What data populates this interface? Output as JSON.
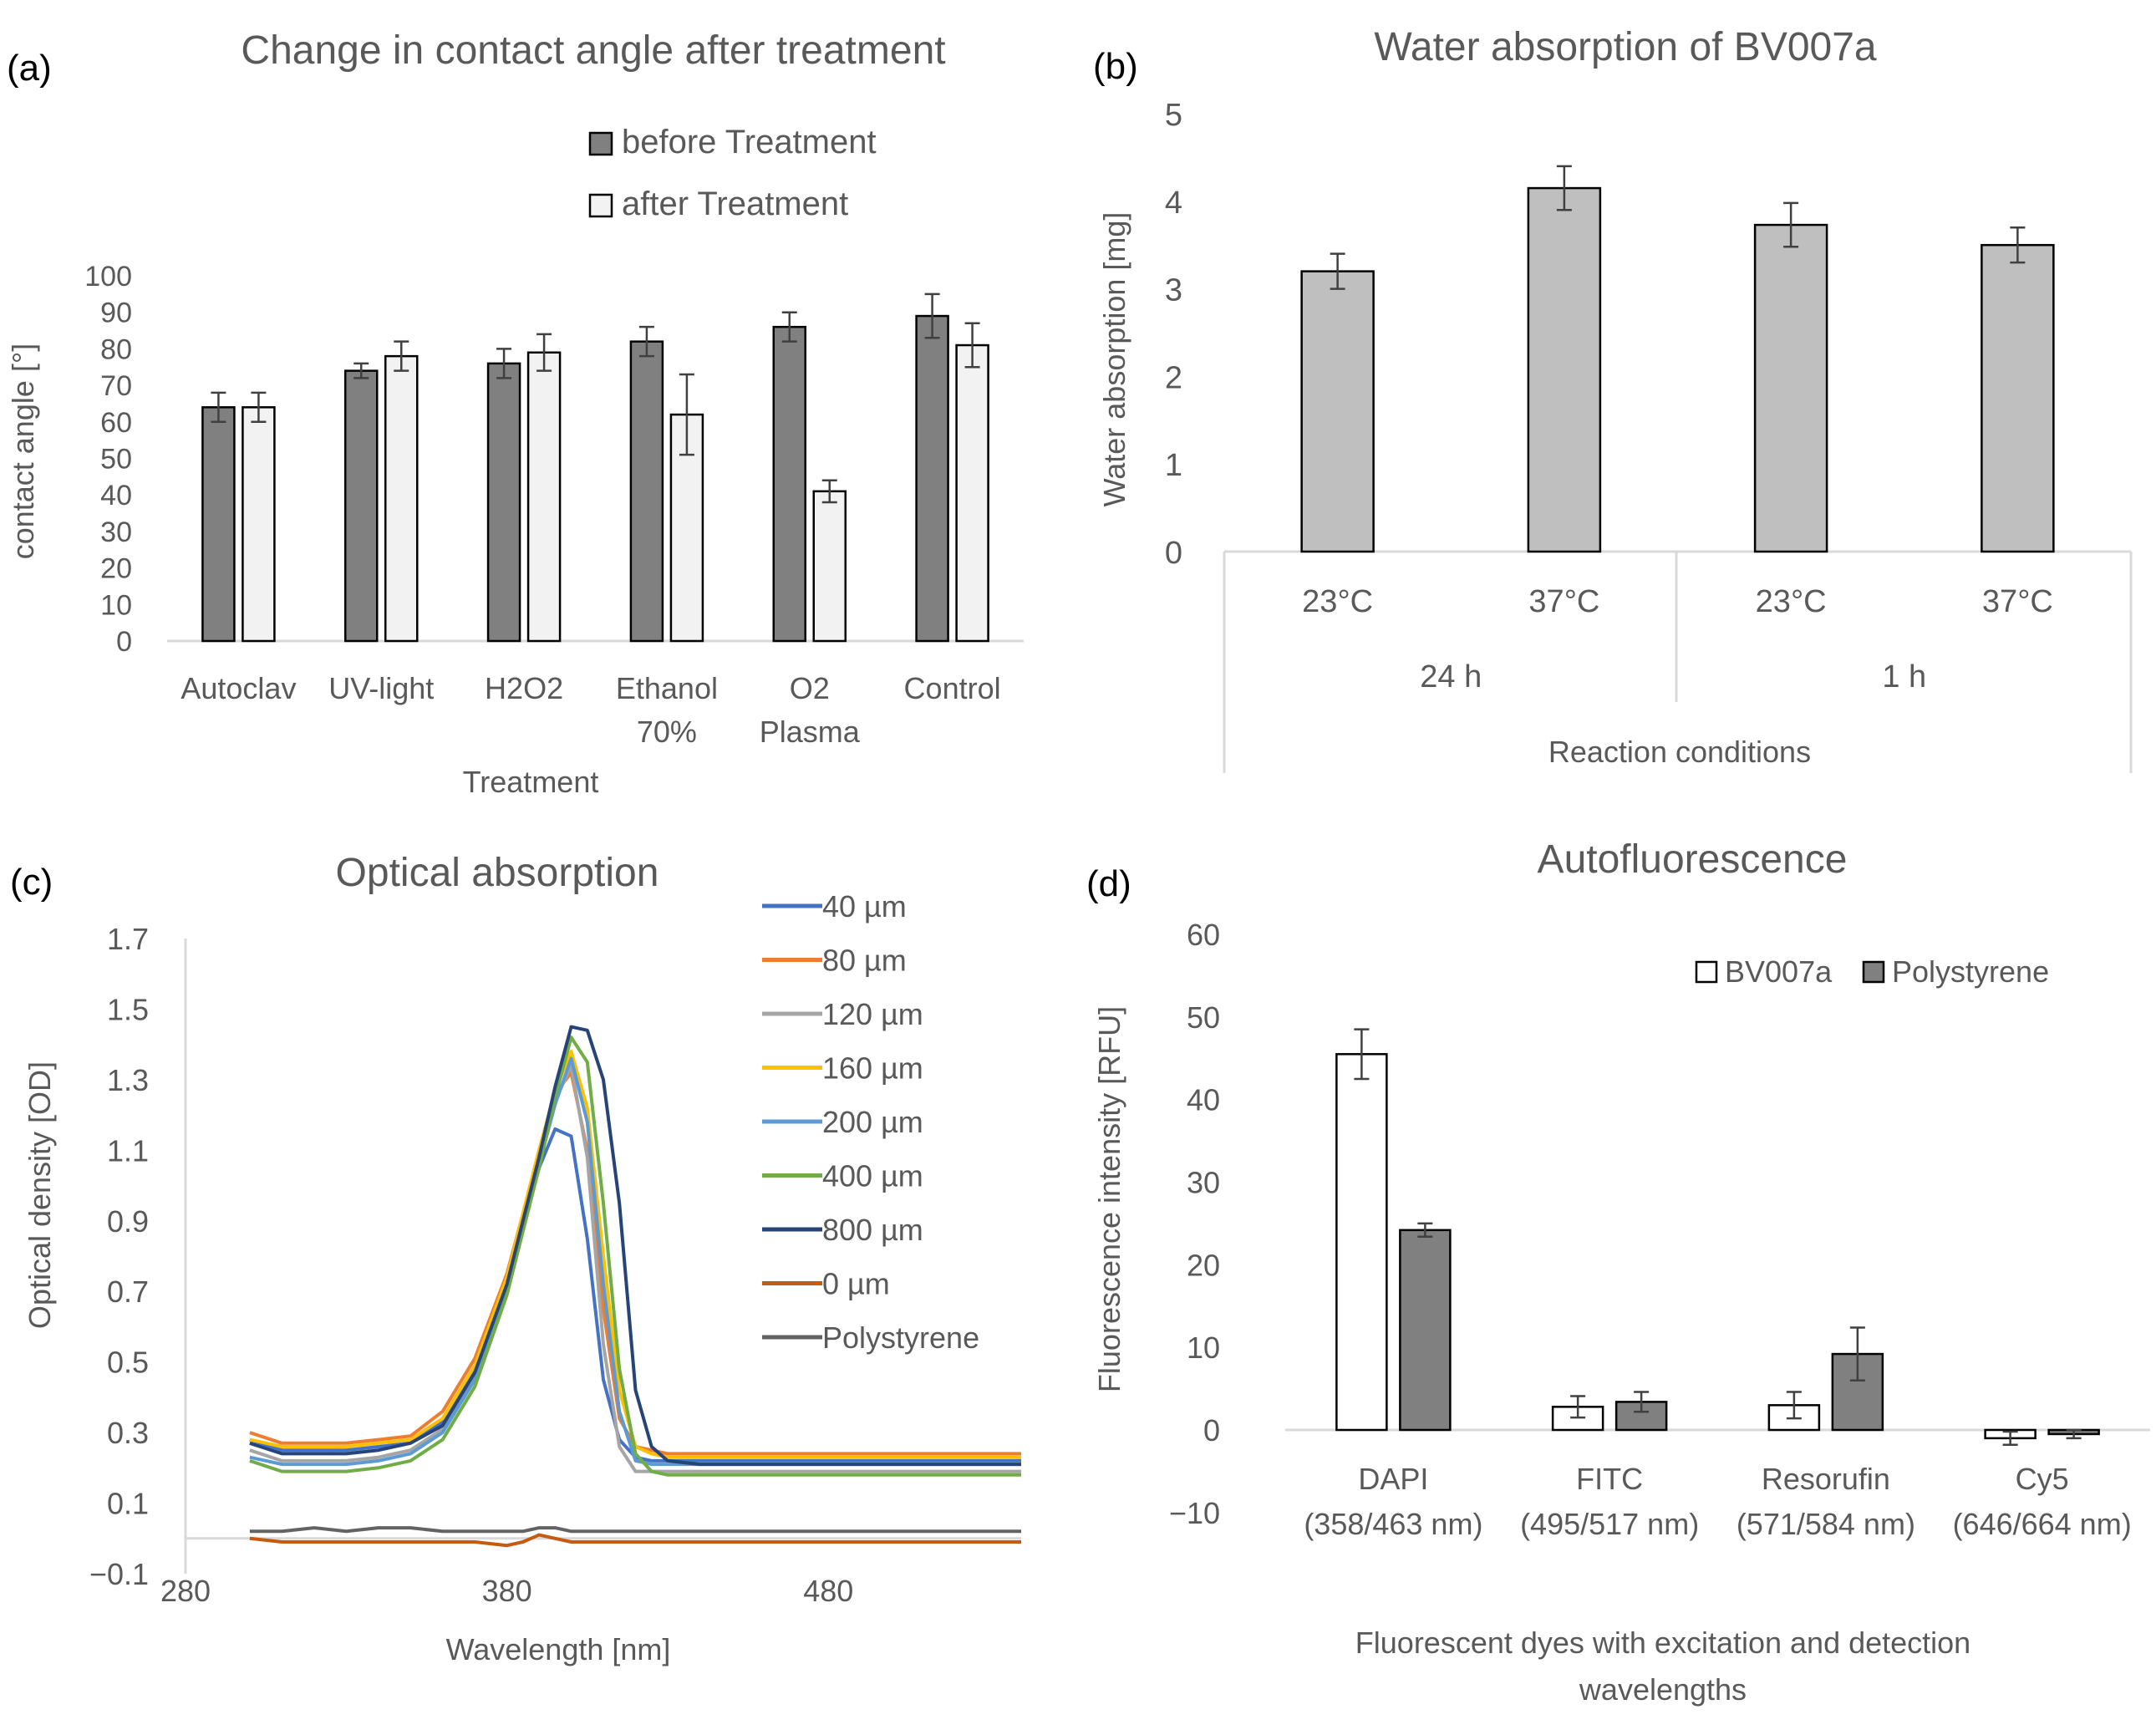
{
  "chart_data": [
    {
      "panel_label": "(a)",
      "type": "bar",
      "title": "Change in contact angle after treatment",
      "xlabel": "Treatment",
      "ylabel": "contact angle [°]",
      "ylim": [
        0,
        100
      ],
      "yticks": [
        "0",
        "10",
        "20",
        "30",
        "40",
        "50",
        "60",
        "70",
        "80",
        "90",
        "100"
      ],
      "categories": [
        "Autoclav",
        "UV-light",
        "H2O2",
        "Ethanol 70%",
        "O2 Plasma",
        "Control"
      ],
      "category_lines": [
        [
          "Autoclav"
        ],
        [
          "UV-light"
        ],
        [
          "H2O2"
        ],
        [
          "Ethanol",
          "70%"
        ],
        [
          "O2",
          "Plasma"
        ],
        [
          "Control"
        ]
      ],
      "series": [
        {
          "name": "before Treatment",
          "color": "#808080",
          "values": [
            64,
            74,
            76,
            82,
            86,
            89
          ],
          "errors": [
            4,
            2,
            4,
            4,
            4,
            6
          ]
        },
        {
          "name": "after Treatment",
          "color": "#f2f2f2",
          "values": [
            64,
            78,
            79,
            62,
            41,
            81
          ],
          "errors": [
            4,
            4,
            5,
            11,
            3,
            6
          ]
        }
      ],
      "legend_position": "top-right"
    },
    {
      "panel_label": "(b)",
      "type": "bar",
      "title": "Water absorption of BV007a",
      "xlabel": "Reaction conditions",
      "ylabel": "Water absorption [mg]",
      "ylim": [
        0,
        5
      ],
      "yticks": [
        "0",
        "1",
        "2",
        "3",
        "4",
        "5"
      ],
      "categories": [
        "23°C",
        "37°C",
        "23°C",
        "37°C"
      ],
      "groups": [
        "24 h",
        "1 h"
      ],
      "series": [
        {
          "name": "Water absorption",
          "color": "#bfbfbf",
          "values": [
            3.2,
            4.15,
            3.73,
            3.5
          ],
          "errors": [
            0.2,
            0.25,
            0.25,
            0.2
          ]
        }
      ]
    },
    {
      "panel_label": "(c)",
      "type": "line",
      "title": "Optical absorption",
      "xlabel": "Wavelength [nm]",
      "ylabel": "Optical density [OD]",
      "xlim": [
        280,
        540
      ],
      "ylim": [
        -0.1,
        1.7
      ],
      "xticks": [
        "280",
        "380",
        "480"
      ],
      "yticks": [
        "−0.1",
        "0.1",
        "0.3",
        "0.5",
        "0.7",
        "0.9",
        "1.1",
        "1.3",
        "1.5",
        "1.7"
      ],
      "x": [
        300,
        310,
        320,
        330,
        340,
        350,
        360,
        370,
        380,
        385,
        390,
        395,
        400,
        405,
        410,
        415,
        420,
        425,
        430,
        440,
        460,
        480,
        500,
        520,
        540
      ],
      "series": [
        {
          "name": "40 µm",
          "color": "#4472c4",
          "values": [
            0.28,
            0.25,
            0.25,
            0.25,
            0.26,
            0.27,
            0.33,
            0.48,
            0.72,
            0.88,
            1.05,
            1.16,
            1.14,
            0.85,
            0.45,
            0.28,
            0.23,
            0.22,
            0.22,
            0.22,
            0.22,
            0.22,
            0.22,
            0.22,
            0.22
          ]
        },
        {
          "name": "80 µm",
          "color": "#ed7d31",
          "values": [
            0.3,
            0.27,
            0.27,
            0.27,
            0.28,
            0.29,
            0.36,
            0.51,
            0.75,
            0.92,
            1.1,
            1.26,
            1.32,
            1.1,
            0.65,
            0.34,
            0.26,
            0.25,
            0.24,
            0.24,
            0.24,
            0.24,
            0.24,
            0.24,
            0.24
          ]
        },
        {
          "name": "120 µm",
          "color": "#a5a5a5",
          "values": [
            0.25,
            0.22,
            0.22,
            0.22,
            0.23,
            0.25,
            0.31,
            0.46,
            0.72,
            0.9,
            1.08,
            1.24,
            1.34,
            1.08,
            0.55,
            0.26,
            0.19,
            0.19,
            0.19,
            0.19,
            0.19,
            0.19,
            0.19,
            0.19,
            0.19
          ]
        },
        {
          "name": "160 µm",
          "color": "#ffc000",
          "values": [
            0.28,
            0.26,
            0.26,
            0.26,
            0.27,
            0.28,
            0.34,
            0.49,
            0.74,
            0.92,
            1.1,
            1.27,
            1.38,
            1.22,
            0.8,
            0.42,
            0.26,
            0.24,
            0.23,
            0.23,
            0.23,
            0.23,
            0.23,
            0.23,
            0.23
          ]
        },
        {
          "name": "200 µm",
          "color": "#5b9bd5",
          "values": [
            0.23,
            0.21,
            0.21,
            0.21,
            0.22,
            0.24,
            0.3,
            0.45,
            0.7,
            0.88,
            1.06,
            1.23,
            1.36,
            1.18,
            0.72,
            0.36,
            0.22,
            0.21,
            0.21,
            0.21,
            0.21,
            0.21,
            0.21,
            0.21,
            0.21
          ]
        },
        {
          "name": "400 µm",
          "color": "#70ad47",
          "values": [
            0.22,
            0.19,
            0.19,
            0.19,
            0.2,
            0.22,
            0.28,
            0.43,
            0.69,
            0.87,
            1.05,
            1.25,
            1.42,
            1.35,
            0.95,
            0.48,
            0.24,
            0.19,
            0.18,
            0.18,
            0.18,
            0.18,
            0.18,
            0.18,
            0.18
          ]
        },
        {
          "name": "800 µm",
          "color": "#264478",
          "values": [
            0.27,
            0.24,
            0.24,
            0.24,
            0.25,
            0.27,
            0.32,
            0.47,
            0.72,
            0.9,
            1.08,
            1.28,
            1.45,
            1.44,
            1.3,
            0.95,
            0.42,
            0.26,
            0.22,
            0.21,
            0.21,
            0.21,
            0.21,
            0.21,
            0.21
          ]
        },
        {
          "name": "0 µm",
          "color": "#c55a11",
          "values": [
            0.0,
            -0.01,
            -0.01,
            -0.01,
            -0.01,
            -0.01,
            -0.01,
            -0.01,
            -0.02,
            -0.01,
            0.01,
            0.0,
            -0.01,
            -0.01,
            -0.01,
            -0.01,
            -0.01,
            -0.01,
            -0.01,
            -0.01,
            -0.01,
            -0.01,
            -0.01,
            -0.01,
            -0.01
          ]
        },
        {
          "name": "Polystyrene",
          "color": "#636363",
          "values": [
            0.02,
            0.02,
            0.03,
            0.02,
            0.03,
            0.03,
            0.02,
            0.02,
            0.02,
            0.02,
            0.03,
            0.03,
            0.02,
            0.02,
            0.02,
            0.02,
            0.02,
            0.02,
            0.02,
            0.02,
            0.02,
            0.02,
            0.02,
            0.02,
            0.02
          ]
        }
      ],
      "legend_position": "top-right"
    },
    {
      "panel_label": "(d)",
      "type": "bar",
      "title": "Autofluorescence",
      "xlabel": "Fluorescent dyes with excitation and detection wavelengths",
      "xlabel_lines": [
        "Fluorescent dyes with excitation and detection",
        "wavelengths"
      ],
      "ylabel": "Fluorescence intensity [RFU]",
      "ylim": [
        -10,
        60
      ],
      "yticks": [
        "−10",
        "0",
        "10",
        "20",
        "30",
        "40",
        "50",
        "60"
      ],
      "categories": [
        "DAPI (358/463 nm)",
        "FITC (495/517 nm)",
        "Resorufin (571/584 nm)",
        "Cy5 (646/664 nm)"
      ],
      "category_lines": [
        [
          "DAPI",
          "(358/463 nm)"
        ],
        [
          "FITC",
          "(495/517 nm)"
        ],
        [
          "Resorufin",
          "(571/584 nm)"
        ],
        [
          "Cy5",
          "(646/664 nm)"
        ]
      ],
      "series": [
        {
          "name": "BV007a",
          "color": "#ffffff",
          "values": [
            45.5,
            2.8,
            3.0,
            -1.0
          ],
          "errors": [
            3.0,
            1.3,
            1.6,
            0.8
          ]
        },
        {
          "name": "Polystyrene",
          "color": "#808080",
          "values": [
            24.2,
            3.4,
            9.2,
            -0.5
          ],
          "errors": [
            0.8,
            1.2,
            3.2,
            0.5
          ]
        }
      ],
      "legend_position": "top-right"
    }
  ]
}
